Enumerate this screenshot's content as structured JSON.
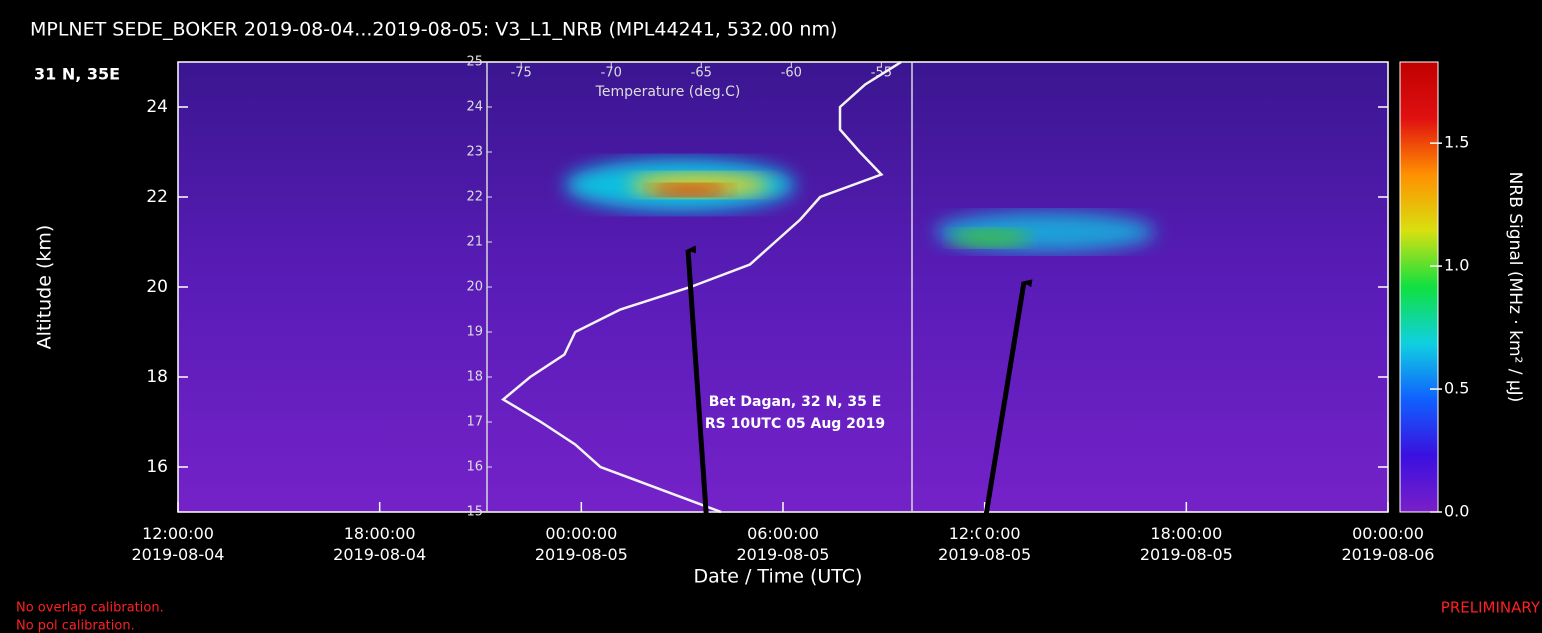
{
  "chart_data": [
    {
      "type": "heatmap",
      "title": "MPLNET SEDE_BOKER 2019-08-04...2019-08-05:  V3_L1_NRB  (MPL44241, 532.00 nm)",
      "location": "31 N, 35E",
      "y_label": "Altitude (km)",
      "x_label": "Date / Time (UTC)",
      "colorbar_label": "NRB Signal (MHz · km² / μJ)",
      "ylim": [
        15,
        25
      ],
      "yticks": [
        16,
        18,
        20,
        22,
        24
      ],
      "xlim": [
        "2019-08-04 12:00:00",
        "2019-08-06 00:00:00"
      ],
      "xticks": [
        {
          "value": "2019-08-04 12:00:00",
          "label": "12:00:00\n2019-08-04"
        },
        {
          "value": "2019-08-04 18:00:00",
          "label": "18:00:00\n2019-08-04"
        },
        {
          "value": "2019-08-05 00:00:00",
          "label": "00:00:00\n2019-08-05"
        },
        {
          "value": "2019-08-05 06:00:00",
          "label": "06:00:00\n2019-08-05"
        },
        {
          "value": "2019-08-05 12:00:00",
          "label": "12:00:00\n2019-08-05"
        },
        {
          "value": "2019-08-05 18:00:00",
          "label": "18:00:00\n2019-08-05"
        },
        {
          "value": "2019-08-06 00:00:00",
          "label": "00:00:00\n2019-08-06"
        }
      ],
      "clim": [
        0,
        1.83
      ],
      "cticks": [
        {
          "value": 0,
          "label": "0.0"
        },
        0.5,
        {
          "value": 1,
          "label": "1.0"
        },
        1.5
      ],
      "colormap": [
        "#7a1fc8",
        "#3a10e0",
        "#1060ff",
        "#10d0e0",
        "#10e040",
        "#d8e010",
        "#ff9000",
        "#e01010",
        "#c00000"
      ]
    },
    {
      "type": "line",
      "x_label": "Temperature (deg.C)",
      "xlim": [
        -76.9,
        -53.3
      ],
      "xticks": [
        -75,
        -70,
        -65,
        -60,
        -55
      ],
      "ylim": [
        15,
        25
      ],
      "yticks": [
        15,
        16,
        17,
        18,
        19,
        20,
        21,
        22,
        23,
        24,
        25
      ],
      "color": "#f4f4f4",
      "x": [
        -63.9,
        -70.6,
        -72,
        -73.9,
        -76,
        -74.5,
        -72.6,
        -72,
        -69.5,
        -65.6,
        -62.3,
        -60.9,
        -59.5,
        -58.4,
        -55,
        -56.2,
        -57.3,
        -57.3,
        -55.9,
        -53.9
      ],
      "y": [
        15,
        16,
        16.5,
        17,
        17.5,
        18,
        18.5,
        19,
        19.5,
        20,
        20.5,
        21,
        21.5,
        22,
        22.5,
        23,
        23.5,
        24,
        24.5,
        25
      ],
      "annotation": [
        "Bet Dagan, 32 N, 35 E",
        "RS 10UTC 05 Aug 2019"
      ]
    }
  ],
  "notes": [
    "No overlap calibration.",
    "No pol calibration.",
    "PRELIMINARY"
  ]
}
